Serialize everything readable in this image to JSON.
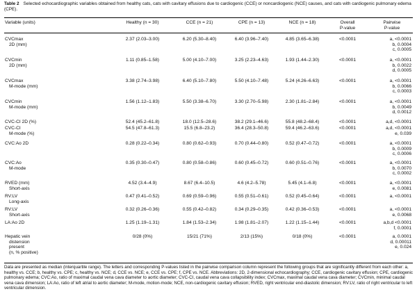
{
  "caption": {
    "label": "Table 2",
    "text": "Selected echocardiographic variables obtained from healthy cats, cats with cavitary effusions due to cardiogenic (CCE) or noncardiogenic (NCE) causes, and cats with cardiogenic pulmonary edema (CPE)."
  },
  "headers": {
    "variable": "Variable (units)",
    "healthy": "Healthy (n = 30)",
    "cce": "CCE (n = 21)",
    "cpe": "CPE (n = 13)",
    "nce": "NCE (n = 18)",
    "overall_l1": "Overall",
    "overall_l2": "P-value",
    "pairwise_l1": "Pairwise",
    "pairwise_l2": "P-value"
  },
  "rows": [
    {
      "var": [
        "CVCmax",
        "2D (mm)"
      ],
      "healthy": "2.37 (2.03–3.00)",
      "cce": "6.20 (5.30–8.40)",
      "cpe": "6.40 (3.96–7.40)",
      "nce": "4.85 (3.65–6.38)",
      "overall": "<0.0001",
      "pairwise": [
        "a, <0.0001",
        "b, 0.0004",
        "c, 0.0005"
      ]
    },
    {
      "var": [
        "CVCmin",
        "2D (mm)"
      ],
      "healthy": "1.11 (0.85–1.58)",
      "cce": "5.00 (4.10–7.00)",
      "cpe": "3.25 (2.23–4.63)",
      "nce": "1.93 (1.44–2.30)",
      "overall": "<0.0001",
      "pairwise": [
        "a, <0.0001",
        "b, 0.0022",
        "d, 0.0005"
      ]
    },
    {
      "var": [
        "CVCmax",
        "M-mode (mm)"
      ],
      "healthy": "3.38 (2.74–3.98)",
      "cce": "6.40 (5.10–7.80)",
      "cpe": "5.50 (4.10–7.48)",
      "nce": "5.24 (4.26–6.63)",
      "overall": "<0.0001",
      "pairwise": [
        "a, <0.0001",
        "b, 0.0066",
        "c, 0.0003"
      ]
    },
    {
      "var": [
        "CVCmin",
        "M-mode (mm)"
      ],
      "healthy": "1.56 (1.12–1.83)",
      "cce": "5.50 (3.38–6.70)",
      "cpe": "3.30 (2.70–5.98)",
      "nce": "2.30 (1.81–2.84)",
      "overall": "<0.0001",
      "pairwise": [
        "a, <0.0001",
        "b, 0.0049",
        "d, 0.0012"
      ]
    },
    {
      "var": [
        "CVC-CI 2D (%)"
      ],
      "healthy": "52.4 (45.2–61.8)",
      "cce": "18.0 (12.5–28.6)",
      "cpe": "38.2 (29.1–46.6)",
      "nce": "55.8 (48.2–68.4)",
      "overall": "<0.0001",
      "pairwise": [
        "a,d, <0.0001"
      ]
    },
    {
      "var": [
        "CVC-CI",
        "M-mode (%)"
      ],
      "healthy": "54.5 (47.8–61.3)",
      "cce": "15.5 (6.8–23.2)",
      "cpe": "36.4 (28.3–50.8)",
      "nce": "59.4 (46.2–63.6)",
      "overall": "<0.0001",
      "pairwise": [
        "a,d, <0.0001",
        "e, 0.039"
      ]
    },
    {
      "var": [
        "CVC:Ao 2D"
      ],
      "healthy": "0.28 (0.22–0.34)",
      "cce": "0.80 (0.62–0.93)",
      "cpe": "0.70 (0.44–0.80)",
      "nce": "0.52 (0.47–0.72)",
      "overall": "<0.0001",
      "pairwise": [
        "a, <0.0001",
        "b, 0.0009",
        "c, 0.0006"
      ]
    },
    {
      "var": [
        "CVC:Ao",
        "M-mode"
      ],
      "healthy": "0.35 (0.30–0.47)",
      "cce": "0.80 (0.58–0.86)",
      "cpe": "0.60 (0.45–0.72)",
      "nce": "0.60 (0.51–0.76)",
      "overall": "<0.0001",
      "pairwise": [
        "a, <0.0001",
        "b, 0.0070",
        "c, 0.0002"
      ]
    },
    {
      "var": [
        "RVED (mm)",
        "Short-axis"
      ],
      "healthy": "4.52 (3.4–4.9)",
      "cce": "8.67 (6.4–10.5)",
      "cpe": "4.6 (4.2–5.78)",
      "nce": "5.45 (4.1–6.8)",
      "overall": "<0.0001",
      "pairwise": [
        "a, <0.0001",
        "e, 0.0081"
      ]
    },
    {
      "var": [
        "RV:LV",
        "Long-axis"
      ],
      "healthy": "0.47 (0.41–0.52)",
      "cce": "0.69 (0.59–0.96)",
      "cpe": "0.55 (0.51–0.61)",
      "nce": "0.52 (0.45–0.64)",
      "overall": "<0.0001",
      "pairwise": [
        "a, <0.0001"
      ]
    },
    {
      "var": [
        "RV:LV",
        "Short-axis"
      ],
      "healthy": "0.32 (0.26–0.36)",
      "cce": "0.55 (0.42–0.82)",
      "cpe": "0.34 (0.29–0.35)",
      "nce": "0.42 (0.36–0.53)",
      "overall": "<0.0001",
      "pairwise": [
        "a, <0.0001",
        "e, 0.0068"
      ]
    },
    {
      "var": [
        "LA:Ao 2D"
      ],
      "healthy": "1.25 (1.19–1.31)",
      "cce": "1.84 (1.53–2.34)",
      "cpe": "1.98 (1.81–2.07)",
      "nce": "1.22 (1.15–1.44)",
      "overall": "<0.0001",
      "pairwise": [
        "a,b,d <0.0001",
        "f, 0.0001"
      ]
    },
    {
      "var": [
        "Hepatic vein",
        "distension",
        "present",
        "(n, % positive)"
      ],
      "healthy": "0/28 (0%)",
      "cce": "15/21 (71%)",
      "cpe": "2/13 (15%)",
      "nce": "0/18 (0%)",
      "overall": "<0.0001",
      "pairwise": [
        "a, 0.0001",
        "d, 0.00011",
        "e, 0.024"
      ]
    }
  ],
  "footnote": "Data are presented as median (interquartile range). The letters and corresponding P-values listed in the pairwise comparison column represent the following groups that are significantly different from each other: a, healthy vs. CCE; b, healthy vs. CPE; c, healthy vs. NCE; d, CCE vs. NCE; e, CCE vs. CPE; f, CPE vs. NCE. Abbreviations: 2D, 2-dimensional echocardiography; CCE, cardiogenic cavitary effusion; CPE, cardiogenic pulmonary edema; CVC:Ao, ratio of maximal caudal vena cava diameter to aortic diameter; CVC-CI, caudal vena cava collapsibility index; CVCmax, maximal caudal vena cava diameter; CVCmin, minimal caudal vena cava dimension; LA:Ao, ratio of left atrial to aortic diameter; M-mode, motion-mode; NCE, non-cardiogenic cavitary effusion; RVED, right ventricular end-diastolic dimension; RV:LV, ratio of right ventricular to left ventricular dimension."
}
